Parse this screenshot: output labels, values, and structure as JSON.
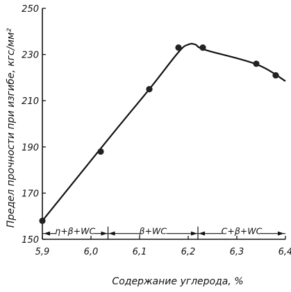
{
  "chart_data": {
    "type": "line",
    "title": "",
    "xlabel": "Содержание углерода, %",
    "ylabel": "Предел прочности при изгибе, кгс/мм²",
    "xlim": [
      5.9,
      6.4
    ],
    "ylim": [
      150,
      250
    ],
    "x_ticks": [
      5.9,
      6.0,
      6.1,
      6.2,
      6.3,
      6.4
    ],
    "x_tick_labels": [
      "5,9",
      "6,0",
      "6,1",
      "6,2",
      "6,3",
      "6,4"
    ],
    "y_ticks": [
      150,
      170,
      190,
      210,
      230,
      250
    ],
    "y_tick_labels": [
      "150",
      "170",
      "190",
      "210",
      "230",
      "250"
    ],
    "grid": false,
    "series": [
      {
        "points": [
          {
            "x": 5.9,
            "y": 158
          },
          {
            "x": 6.02,
            "y": 188
          },
          {
            "x": 6.12,
            "y": 215
          },
          {
            "x": 6.18,
            "y": 233
          },
          {
            "x": 6.23,
            "y": 233
          },
          {
            "x": 6.34,
            "y": 226
          },
          {
            "x": 6.38,
            "y": 221
          }
        ],
        "curve": [
          {
            "x": 5.9,
            "y": 158
          },
          {
            "x": 6.04,
            "y": 194.5
          },
          {
            "x": 6.12,
            "y": 215
          },
          {
            "x": 6.18,
            "y": 231
          },
          {
            "x": 6.2,
            "y": 234.3
          },
          {
            "x": 6.215,
            "y": 234.3
          },
          {
            "x": 6.235,
            "y": 232
          },
          {
            "x": 6.34,
            "y": 225.8
          },
          {
            "x": 6.4,
            "y": 218.5
          }
        ]
      }
    ],
    "regions": [
      {
        "label": "η+β+WC",
        "x_start": 5.9,
        "x_end": 6.035
      },
      {
        "label": "β+WC",
        "x_start": 6.035,
        "x_end": 6.22
      },
      {
        "label": "C+β+WC",
        "x_start": 6.22,
        "x_end": 6.4
      }
    ],
    "region_line_y": 152.5
  }
}
